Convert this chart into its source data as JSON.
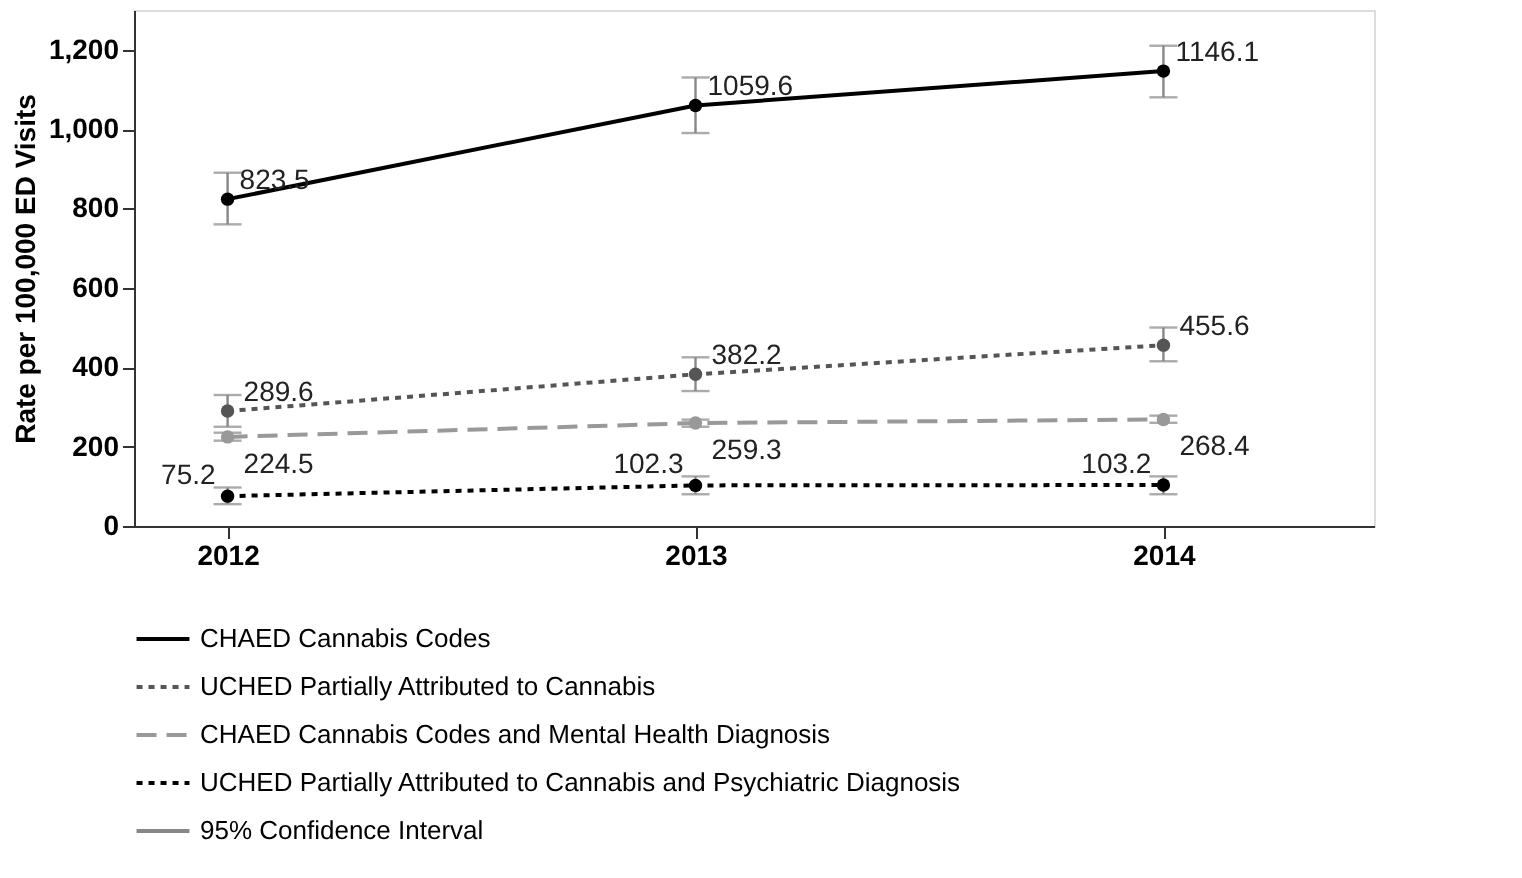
{
  "chart_data": {
    "type": "line",
    "ylabel": "Rate per 100,000 ED Visits",
    "categories": [
      "2012",
      "2013",
      "2014"
    ],
    "series": [
      {
        "name": "CHAED Cannabis Codes",
        "color": "#000000",
        "line_style": "solid",
        "values": [
          823.5,
          1059.6,
          1146.1
        ],
        "errors": [
          [
            760,
            890
          ],
          [
            990,
            1130
          ],
          [
            1080,
            1210
          ]
        ]
      },
      {
        "name": "UCHED Partially Attributed to Cannabis",
        "color": "#555555",
        "line_style": "dotted",
        "values": [
          289.6,
          382.2,
          455.6
        ],
        "errors": [
          [
            250,
            330
          ],
          [
            340,
            425
          ],
          [
            415,
            500
          ]
        ]
      },
      {
        "name": "CHAED Cannabis Codes and Mental Health Diagnosis",
        "color": "#999999",
        "line_style": "dashed",
        "values": [
          224.5,
          259.3,
          268.4
        ],
        "errors": [
          [
            215,
            235
          ],
          [
            250,
            268
          ],
          [
            260,
            278
          ]
        ]
      },
      {
        "name": "UCHED Partially Attributed to Cannabis and Psychiatric Diagnosis",
        "color": "#000000",
        "line_style": "dotted",
        "values": [
          75.2,
          102.3,
          103.2
        ],
        "errors": [
          [
            55,
            97
          ],
          [
            80,
            125
          ],
          [
            80,
            125
          ]
        ]
      }
    ],
    "annotations": [
      "95% Confidence Interval"
    ],
    "ylim": [
      0,
      1300
    ],
    "yticks": [
      0,
      200,
      400,
      600,
      800,
      {
        "value": 1000,
        "label": "1,000"
      },
      {
        "value": 1200,
        "label": "1,200"
      }
    ],
    "marker": "circle",
    "data_labels": true,
    "grid": false,
    "legend": "bottom"
  }
}
